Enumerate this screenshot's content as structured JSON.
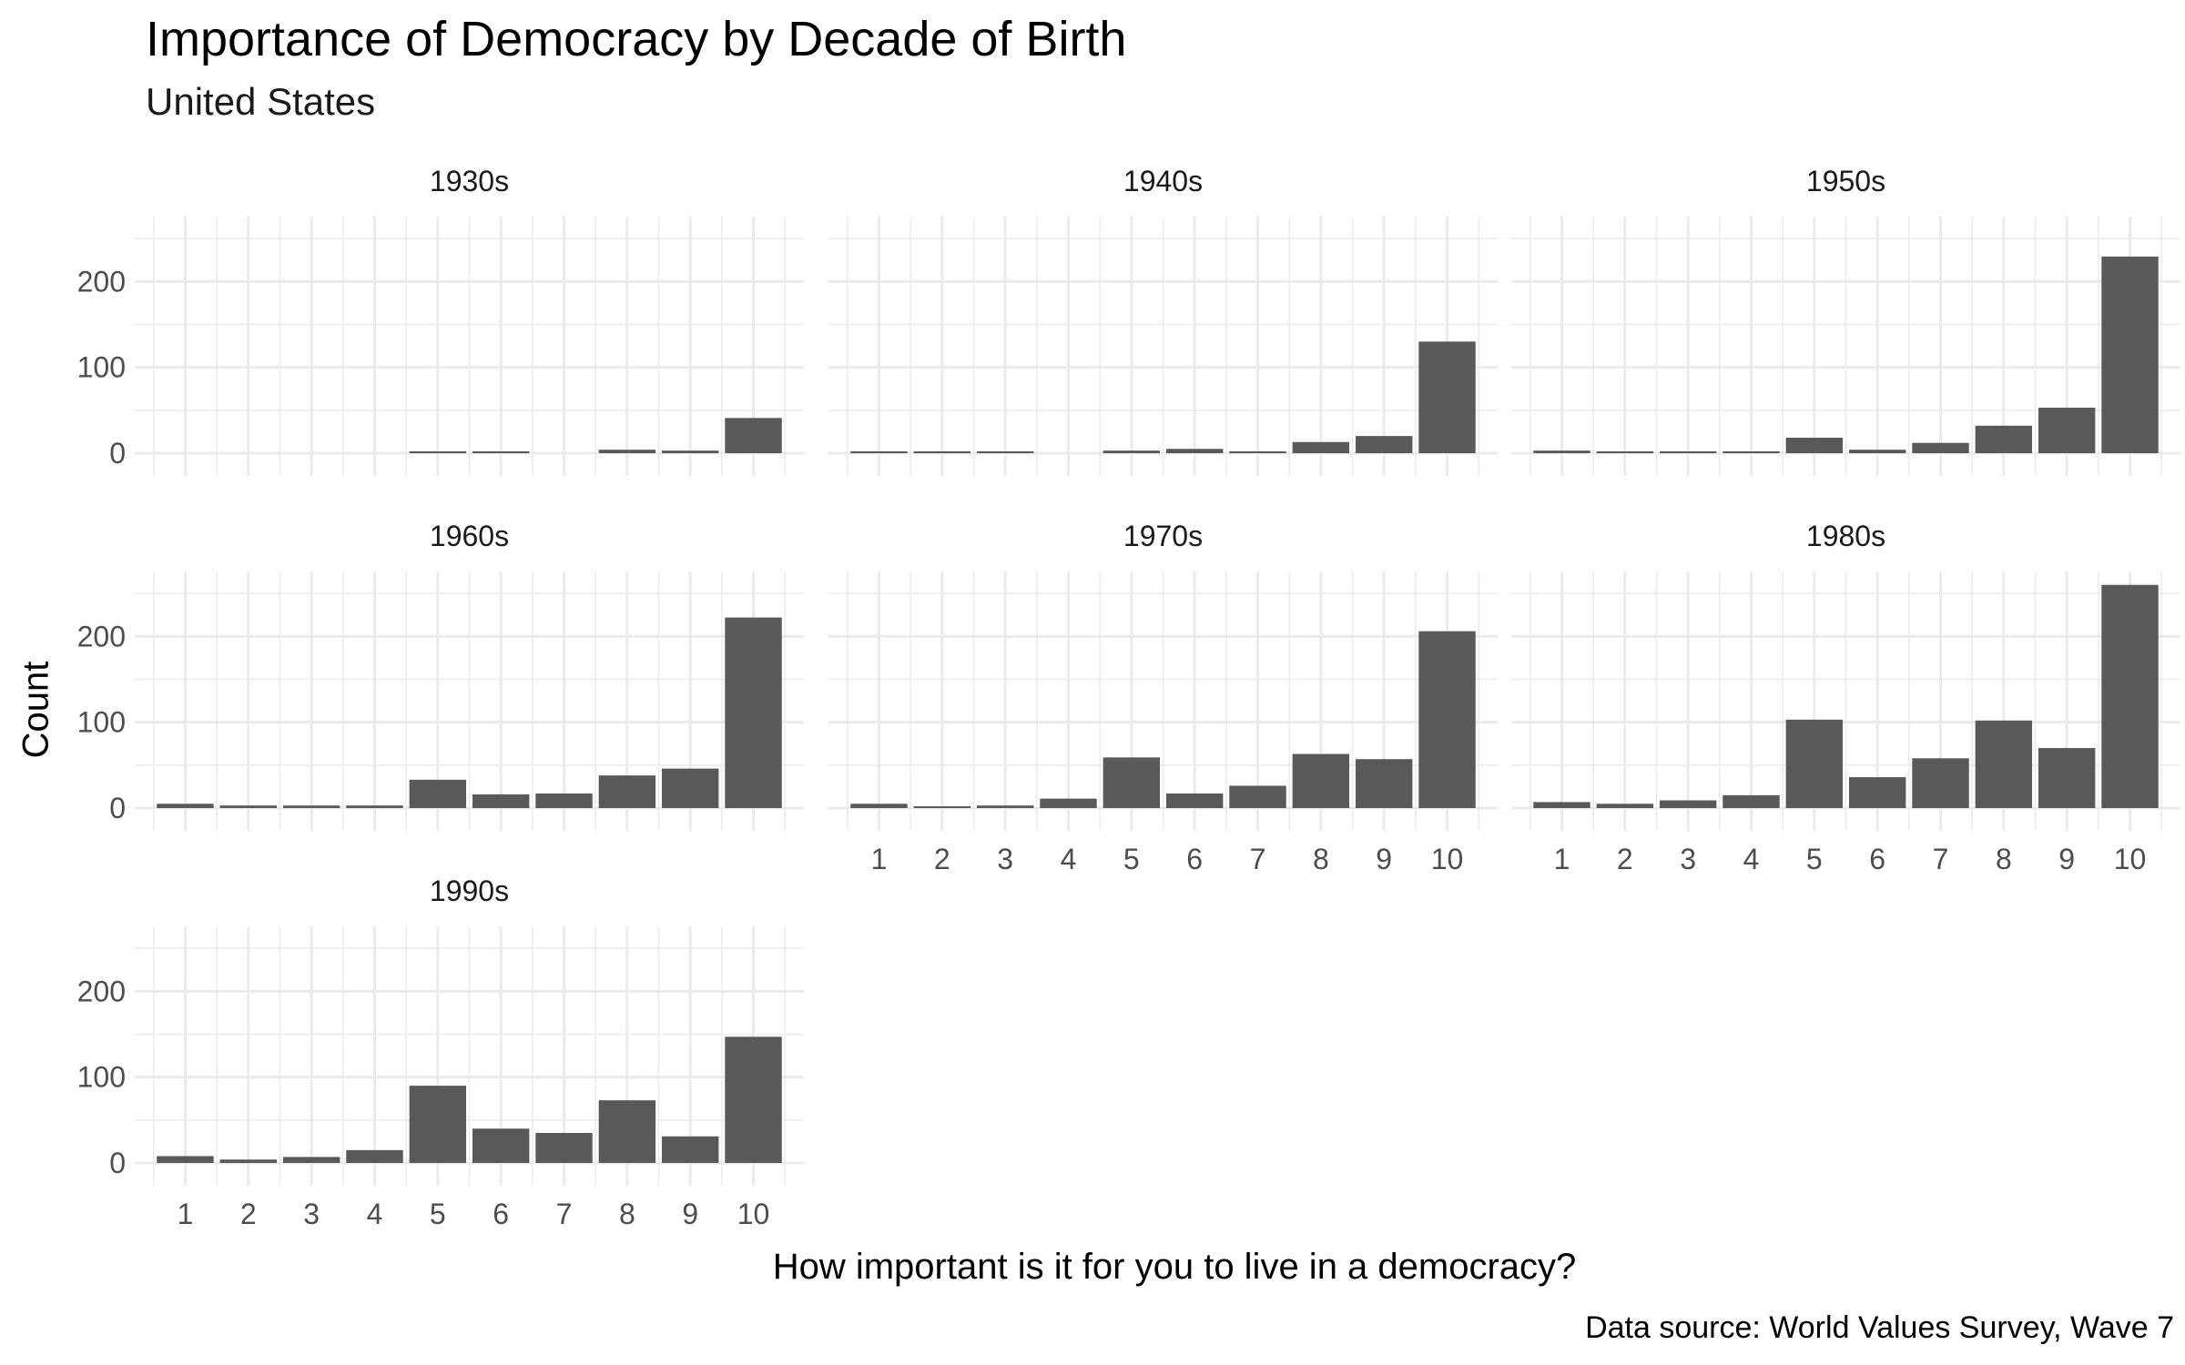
{
  "chart_data": {
    "type": "bar",
    "title": "Importance of Democracy by Decade of Birth",
    "subtitle": "United States",
    "xlabel": "How important is it for you to live in a democracy?",
    "ylabel": "Count",
    "caption": "Data source: World Values Survey, Wave 7",
    "categories": [
      "1",
      "2",
      "3",
      "4",
      "5",
      "6",
      "7",
      "8",
      "9",
      "10"
    ],
    "y_ticks": [
      "0",
      "100",
      "200"
    ],
    "ylim": [
      0,
      265
    ],
    "grid": true,
    "bar_color": "#595959",
    "grid_color": "#ebebeb",
    "facets": [
      {
        "label": "1930s",
        "values": [
          0,
          0,
          0,
          0,
          1,
          1,
          0,
          4,
          3,
          41
        ]
      },
      {
        "label": "1940s",
        "values": [
          2,
          1,
          1,
          0,
          3,
          5,
          1,
          13,
          20,
          130
        ]
      },
      {
        "label": "1950s",
        "values": [
          3,
          2,
          1,
          2,
          18,
          4,
          12,
          32,
          53,
          229
        ]
      },
      {
        "label": "1960s",
        "values": [
          5,
          3,
          3,
          3,
          33,
          16,
          17,
          38,
          46,
          222
        ]
      },
      {
        "label": "1970s",
        "values": [
          5,
          2,
          3,
          11,
          59,
          17,
          26,
          63,
          57,
          206
        ]
      },
      {
        "label": "1980s",
        "values": [
          7,
          5,
          9,
          15,
          103,
          36,
          58,
          102,
          70,
          260
        ]
      },
      {
        "label": "1990s",
        "values": [
          8,
          4,
          7,
          15,
          90,
          40,
          35,
          73,
          31,
          147
        ]
      }
    ]
  }
}
